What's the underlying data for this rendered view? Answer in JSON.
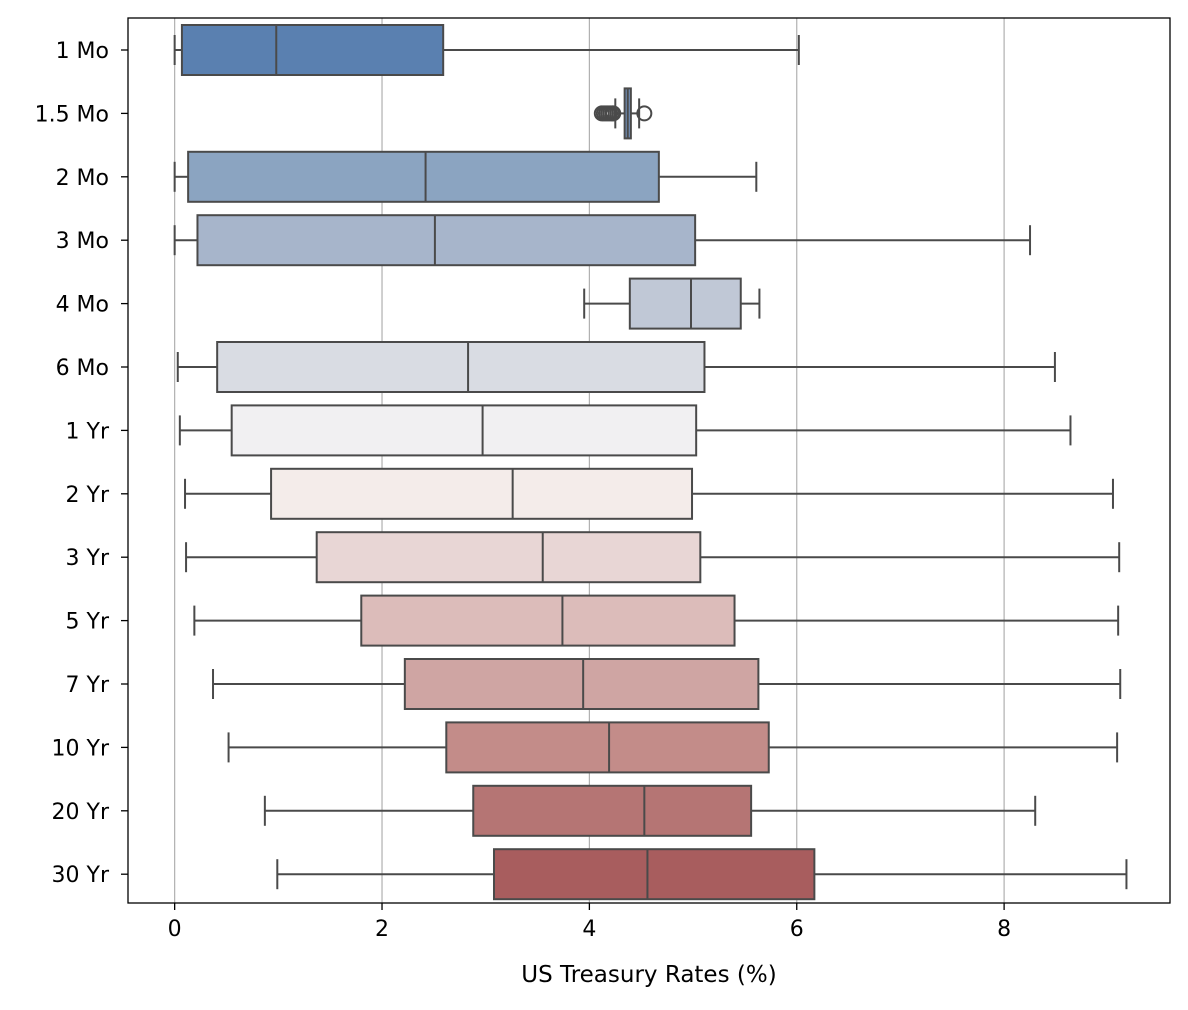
{
  "chart_data": {
    "type": "boxplot",
    "orientation": "horizontal",
    "xlabel": "US Treasury Rates (%)",
    "ylabel": "",
    "xlim": [
      -0.45,
      9.6
    ],
    "xticks": [
      0,
      2,
      4,
      6,
      8
    ],
    "grid": "x-axis vertical lines",
    "categories": [
      "1 Mo",
      "1.5 Mo",
      "2 Mo",
      "3 Mo",
      "4 Mo",
      "6 Mo",
      "1 Yr",
      "2 Yr",
      "3 Yr",
      "5 Yr",
      "7 Yr",
      "10 Yr",
      "20 Yr",
      "30 Yr"
    ],
    "series": [
      {
        "label": "1 Mo",
        "whisker_low": 0.0,
        "q1": 0.07,
        "median": 0.98,
        "q3": 2.59,
        "whisker_high": 6.02,
        "fliers": [],
        "color": "#5a80b0"
      },
      {
        "label": "1.5 Mo",
        "whisker_low": 4.25,
        "q1": 4.34,
        "median": 4.37,
        "q3": 4.4,
        "whisker_high": 4.48,
        "fliers": [
          4.12,
          4.14,
          4.16,
          4.18,
          4.2,
          4.22,
          4.23,
          4.53
        ],
        "color": "#7391b9"
      },
      {
        "label": "2 Mo",
        "whisker_low": 0.0,
        "q1": 0.13,
        "median": 2.42,
        "q3": 4.67,
        "whisker_high": 5.61,
        "fliers": [],
        "color": "#8ba4c1"
      },
      {
        "label": "3 Mo",
        "whisker_low": 0.0,
        "q1": 0.22,
        "median": 2.51,
        "q3": 5.02,
        "whisker_high": 8.25,
        "fliers": [],
        "color": "#a7b5cb"
      },
      {
        "label": "4 Mo",
        "whisker_low": 3.95,
        "q1": 4.39,
        "median": 4.98,
        "q3": 5.46,
        "whisker_high": 5.64,
        "fliers": [],
        "color": "#c0c8d6"
      },
      {
        "label": "6 Mo",
        "whisker_low": 0.03,
        "q1": 0.41,
        "median": 2.83,
        "q3": 5.11,
        "whisker_high": 8.49,
        "fliers": [],
        "color": "#d9dce3"
      },
      {
        "label": "1 Yr",
        "whisker_low": 0.05,
        "q1": 0.55,
        "median": 2.97,
        "q3": 5.03,
        "whisker_high": 8.64,
        "fliers": [],
        "color": "#f1f0f2"
      },
      {
        "label": "2 Yr",
        "whisker_low": 0.1,
        "q1": 0.93,
        "median": 3.26,
        "q3": 4.99,
        "whisker_high": 9.05,
        "fliers": [],
        "color": "#f4ecea"
      },
      {
        "label": "3 Yr",
        "whisker_low": 0.11,
        "q1": 1.37,
        "median": 3.55,
        "q3": 5.07,
        "whisker_high": 9.11,
        "fliers": [],
        "color": "#e8d6d5"
      },
      {
        "label": "5 Yr",
        "whisker_low": 0.19,
        "q1": 1.8,
        "median": 3.74,
        "q3": 5.4,
        "whisker_high": 9.1,
        "fliers": [],
        "color": "#dcbcba"
      },
      {
        "label": "7 Yr",
        "whisker_low": 0.37,
        "q1": 2.22,
        "median": 3.94,
        "q3": 5.63,
        "whisker_high": 9.12,
        "fliers": [],
        "color": "#cfa5a3"
      },
      {
        "label": "10 Yr",
        "whisker_low": 0.52,
        "q1": 2.62,
        "median": 4.19,
        "q3": 5.73,
        "whisker_high": 9.09,
        "fliers": [],
        "color": "#c38c89"
      },
      {
        "label": "20 Yr",
        "whisker_low": 0.87,
        "q1": 2.88,
        "median": 4.53,
        "q3": 5.56,
        "whisker_high": 8.3,
        "fliers": [],
        "color": "#b57574"
      },
      {
        "label": "30 Yr",
        "whisker_low": 0.99,
        "q1": 3.08,
        "median": 4.56,
        "q3": 6.17,
        "whisker_high": 9.18,
        "fliers": [],
        "color": "#a85d5e"
      }
    ]
  },
  "colors": {
    "axis": "#000000",
    "line": "#4a4a4a",
    "grid": "#b0b0b0",
    "background": "#ffffff"
  }
}
